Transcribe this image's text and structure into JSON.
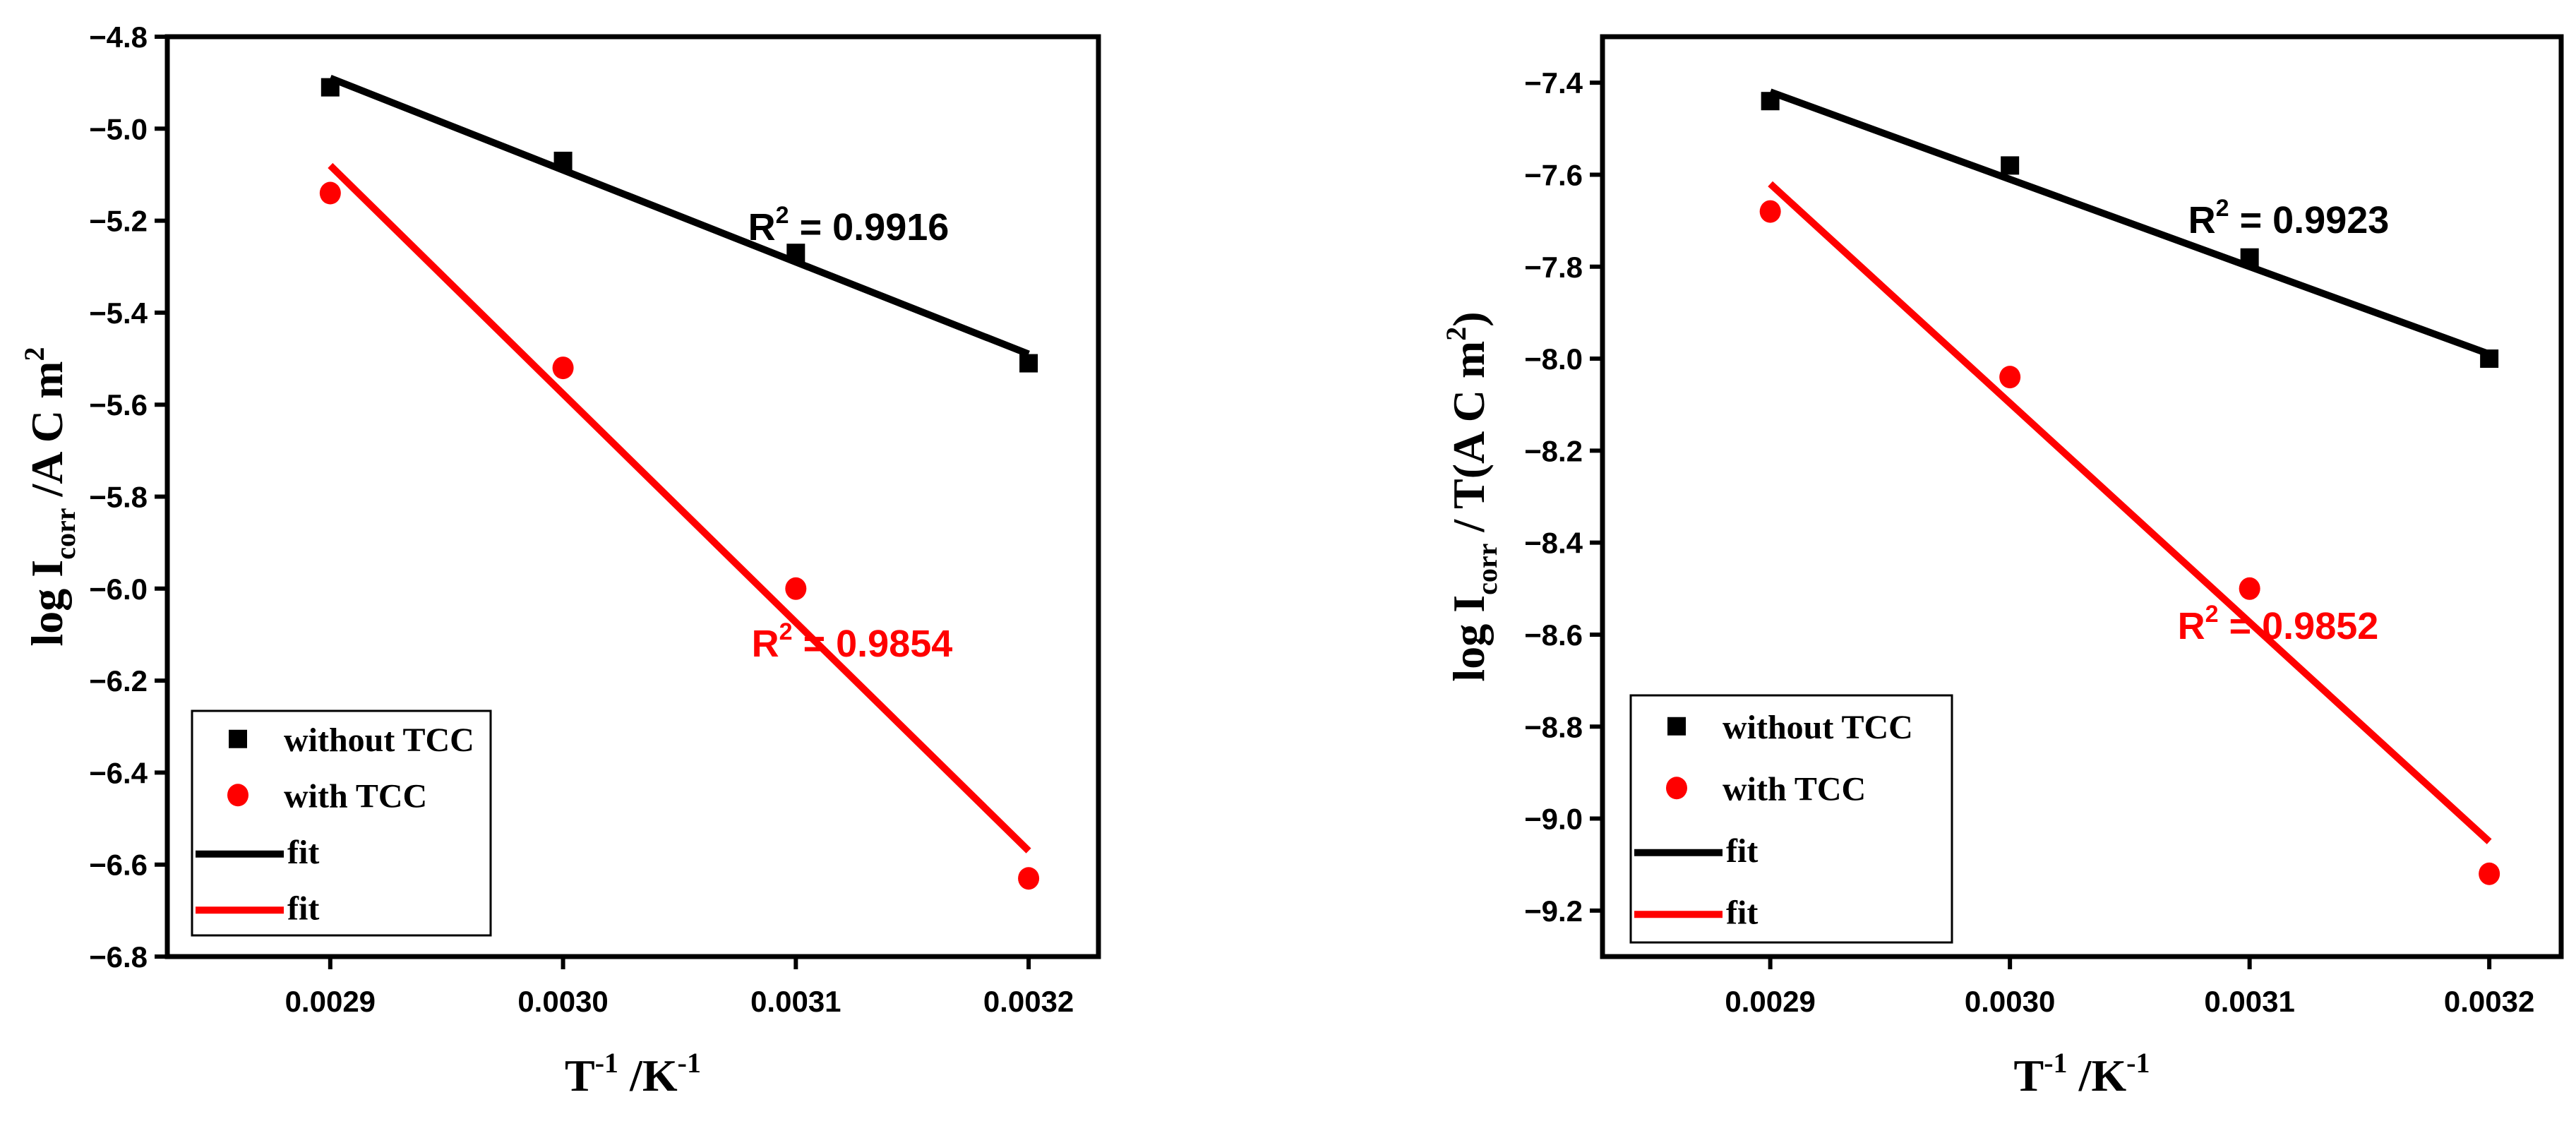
{
  "colors": {
    "without": "#000000",
    "with": "#ff0000",
    "axis": "#000000",
    "background": "#ffffff"
  },
  "chart_data": [
    {
      "type": "scatter",
      "x": [
        0.0029,
        0.003,
        0.0031,
        0.0032
      ],
      "xlim": [
        0.00283,
        0.00323
      ],
      "ylim": [
        -6.8,
        -4.8
      ],
      "xticks": [
        "0.0029",
        "0.0030",
        "0.0031",
        "0.0032"
      ],
      "yticks": [
        "-4.8",
        "-5.0",
        "-5.2",
        "-5.4",
        "-5.6",
        "-5.8",
        "-6.0",
        "-6.2",
        "-6.4",
        "-6.6",
        "-6.8"
      ],
      "xlabel": {
        "main": "T",
        "sup1": "-1",
        "mid": " /K",
        "sup2": "-1"
      },
      "ylabel": {
        "main": "log  I",
        "sub": "corr",
        "rest": " /A  C m",
        "sup": "2"
      },
      "series": [
        {
          "name": "without TCC",
          "marker": "square",
          "color": "#000000",
          "values": [
            -4.91,
            -5.07,
            -5.27,
            -5.51
          ],
          "fit_name": "fit",
          "fit": [
            -4.89,
            -5.49
          ],
          "r2_label": "R",
          "r2_sup": "2",
          "r2_value": " = 0.9916"
        },
        {
          "name": "with TCC",
          "marker": "circle",
          "color": "#ff0000",
          "values": [
            -5.14,
            -5.52,
            -6.0,
            -6.63
          ],
          "fit_name": "fit",
          "fit": [
            -5.08,
            -6.57
          ],
          "r2_label": "R",
          "r2_sup": "2",
          "r2_value": " = 0.9854"
        }
      ]
    },
    {
      "type": "scatter",
      "x": [
        0.0029,
        0.003,
        0.0031,
        0.0032
      ],
      "xlim": [
        0.00283,
        0.00323
      ],
      "ylim": [
        -9.3,
        -7.3
      ],
      "xticks": [
        "0.0029",
        "0.0030",
        "0.0031",
        "0.0032"
      ],
      "yticks": [
        "-7.4",
        "-7.6",
        "-7.8",
        "-8.0",
        "-8.2",
        "-8.4",
        "-8.6",
        "-8.8",
        "-9.0",
        "-9.2"
      ],
      "xlabel": {
        "main": "T",
        "sup1": "-1",
        "mid": " /K",
        "sup2": "-1"
      },
      "ylabel": {
        "main": "log  I",
        "sub": "corr",
        "rest": "  / T(A  C m",
        "sup": "2",
        "end": ")"
      },
      "series": [
        {
          "name": "without TCC",
          "marker": "square",
          "color": "#000000",
          "values": [
            -7.44,
            -7.58,
            -7.78,
            -8.0
          ],
          "fit_name": "fit",
          "fit": [
            -7.42,
            -7.99
          ],
          "r2_label": "R",
          "r2_sup": "2",
          "r2_value": " = 0.9923"
        },
        {
          "name": "with TCC",
          "marker": "circle",
          "color": "#ff0000",
          "values": [
            -7.68,
            -8.04,
            -8.5,
            -9.12
          ],
          "fit_name": "fit",
          "fit": [
            -7.62,
            -9.05
          ],
          "r2_label": "R",
          "r2_sup": "2",
          "r2_value": " = 0.9852"
        }
      ]
    }
  ]
}
